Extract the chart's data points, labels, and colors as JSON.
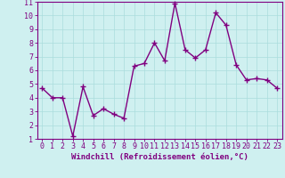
{
  "x": [
    0,
    1,
    2,
    3,
    4,
    5,
    6,
    7,
    8,
    9,
    10,
    11,
    12,
    13,
    14,
    15,
    16,
    17,
    18,
    19,
    20,
    21,
    22,
    23
  ],
  "y": [
    4.7,
    4.0,
    4.0,
    1.2,
    4.8,
    2.7,
    3.2,
    2.8,
    2.5,
    6.3,
    6.5,
    8.0,
    6.7,
    10.9,
    7.5,
    6.9,
    7.5,
    10.2,
    9.3,
    6.4,
    5.3,
    5.4,
    5.3,
    4.7
  ],
  "line_color": "#800080",
  "marker": "+",
  "markersize": 4,
  "linewidth": 1.0,
  "markeredgewidth": 1.0,
  "bg_color": "#cff0f0",
  "grid_color": "#aadddd",
  "xlabel": "Windchill (Refroidissement éolien,°C)",
  "xlabel_fontsize": 6.5,
  "tick_fontsize": 6,
  "ylim": [
    1,
    11
  ],
  "xlim": [
    -0.5,
    23.5
  ],
  "yticks": [
    1,
    2,
    3,
    4,
    5,
    6,
    7,
    8,
    9,
    10,
    11
  ],
  "xticks": [
    0,
    1,
    2,
    3,
    4,
    5,
    6,
    7,
    8,
    9,
    10,
    11,
    12,
    13,
    14,
    15,
    16,
    17,
    18,
    19,
    20,
    21,
    22,
    23
  ],
  "spine_color": "#800080",
  "tick_color": "#800080",
  "label_color": "#800080"
}
